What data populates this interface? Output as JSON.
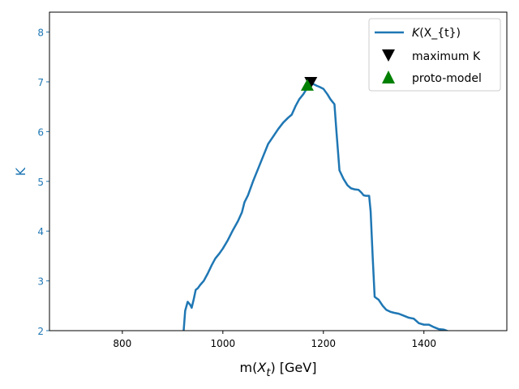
{
  "chart_data": {
    "type": "line",
    "title": "",
    "xlabel_prefix": "m(",
    "xlabel_italic": "X",
    "xlabel_sub": "t",
    "xlabel_suffix": ") [GeV]",
    "ylabel": "K",
    "xlim": [
      655,
      1565
    ],
    "ylim": [
      2.0,
      8.4
    ],
    "x_ticks": [
      800,
      1000,
      1200,
      1400
    ],
    "y_ticks": [
      2,
      3,
      4,
      5,
      6,
      7,
      8
    ],
    "grid": false,
    "legend_position": "top-right",
    "colors": {
      "line": "#1f77b4",
      "ytick": "#1f77b4",
      "ylabel": "#1f77b4",
      "maximum_marker": "#000000",
      "proto_marker": "#008000"
    },
    "series": [
      {
        "name": "K(X_{t})",
        "legend_italic": "K",
        "legend_rest": "(X_{t})",
        "x": [
          918,
          922,
          925,
          930,
          935,
          938,
          942,
          946,
          950,
          955,
          962,
          970,
          978,
          985,
          993,
          1000,
          1010,
          1020,
          1030,
          1038,
          1043,
          1050,
          1060,
          1070,
          1080,
          1090,
          1100,
          1110,
          1120,
          1130,
          1137,
          1145,
          1152,
          1160,
          1168,
          1175,
          1181,
          1187,
          1192,
          1200,
          1208,
          1214,
          1218,
          1222,
          1226,
          1232,
          1240,
          1248,
          1255,
          1262,
          1270,
          1276,
          1280,
          1285,
          1291,
          1294,
          1298,
          1302,
          1306,
          1310,
          1318,
          1325,
          1333,
          1340,
          1350,
          1360,
          1370,
          1380,
          1390,
          1400,
          1410,
          1420,
          1430,
          1440,
          1450
        ],
        "y": [
          1.95,
          2.0,
          2.4,
          2.58,
          2.52,
          2.46,
          2.63,
          2.82,
          2.85,
          2.92,
          3.0,
          3.15,
          3.32,
          3.45,
          3.55,
          3.65,
          3.82,
          4.02,
          4.2,
          4.38,
          4.58,
          4.72,
          5.0,
          5.25,
          5.5,
          5.75,
          5.9,
          6.05,
          6.18,
          6.28,
          6.34,
          6.52,
          6.65,
          6.75,
          6.88,
          6.97,
          6.95,
          6.92,
          6.9,
          6.86,
          6.75,
          6.65,
          6.6,
          6.55,
          6.0,
          5.22,
          5.05,
          4.92,
          4.86,
          4.84,
          4.83,
          4.77,
          4.72,
          4.71,
          4.71,
          4.4,
          3.5,
          2.68,
          2.65,
          2.62,
          2.5,
          2.42,
          2.38,
          2.36,
          2.34,
          2.3,
          2.26,
          2.24,
          2.15,
          2.12,
          2.12,
          2.07,
          2.03,
          2.02,
          1.98
        ]
      }
    ],
    "markers": [
      {
        "name": "maximum K",
        "shape": "triangle-down",
        "x": 1175,
        "y": 6.98
      },
      {
        "name": "proto-model",
        "shape": "triangle-up",
        "x": 1168,
        "y": 6.94
      }
    ]
  }
}
